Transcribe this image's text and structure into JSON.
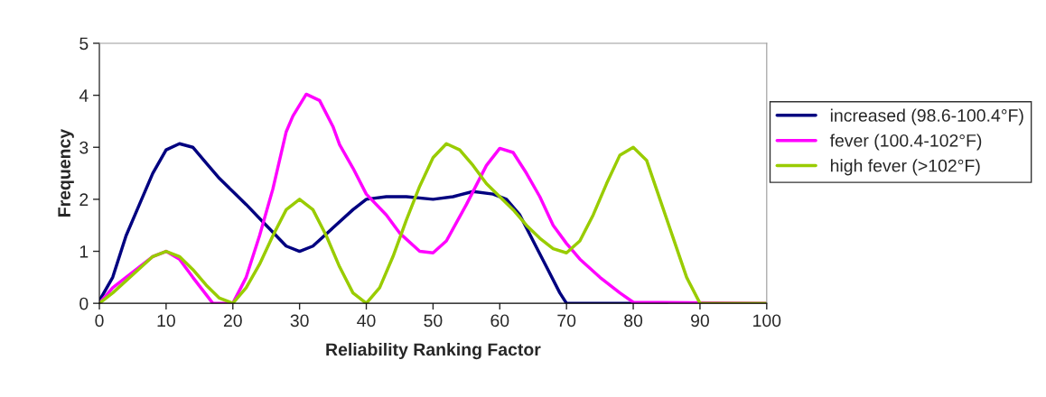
{
  "chart_data": {
    "type": "line",
    "xlabel": "Reliability Ranking Factor",
    "ylabel": "Frequency",
    "xlim": [
      0,
      100
    ],
    "xticks": [
      0,
      10,
      20,
      30,
      40,
      50,
      60,
      70,
      80,
      90,
      100
    ],
    "ylim": [
      0,
      5
    ],
    "yticks": [
      0,
      1,
      2,
      3,
      4,
      5
    ],
    "grid": false,
    "legend": "right",
    "marker": "none",
    "line_style": "solid",
    "series": [
      {
        "name": "increased (98.6-100.4°F)",
        "color": "#000080",
        "x": [
          0,
          2,
          4,
          6,
          8,
          10,
          12,
          14,
          16,
          18,
          20,
          22,
          25,
          28,
          30,
          32,
          35,
          38,
          40,
          43,
          46,
          50,
          53,
          56,
          59,
          61,
          63,
          65,
          67,
          69,
          70,
          75,
          80,
          85
        ],
        "values": [
          0.05,
          0.5,
          1.3,
          1.9,
          2.5,
          2.95,
          3.07,
          3.0,
          2.7,
          2.4,
          2.15,
          1.9,
          1.5,
          1.1,
          1.0,
          1.1,
          1.45,
          1.8,
          2.0,
          2.05,
          2.05,
          2.0,
          2.05,
          2.15,
          2.1,
          2.0,
          1.7,
          1.2,
          0.7,
          0.2,
          0,
          0,
          0,
          0
        ]
      },
      {
        "name": "fever (100.4-102°F)",
        "color": "#ff00ff",
        "x": [
          0,
          2,
          5,
          8,
          10,
          12,
          14,
          17,
          20,
          22,
          24,
          26,
          28,
          29,
          31,
          33,
          35,
          36,
          38,
          40,
          43,
          45,
          48,
          50,
          52,
          55,
          58,
          60,
          62,
          64,
          66,
          68,
          70,
          72,
          75,
          78,
          80,
          100
        ],
        "values": [
          0,
          0.3,
          0.6,
          0.9,
          1.0,
          0.85,
          0.5,
          0,
          0,
          0.5,
          1.3,
          2.2,
          3.3,
          3.6,
          4.02,
          3.9,
          3.4,
          3.05,
          2.6,
          2.1,
          1.7,
          1.35,
          1.0,
          0.97,
          1.2,
          1.9,
          2.65,
          2.98,
          2.9,
          2.5,
          2.05,
          1.5,
          1.15,
          0.85,
          0.5,
          0.2,
          0.02,
          0
        ]
      },
      {
        "name": "high fever (>102°F)",
        "color": "#99cc00",
        "x": [
          0,
          2,
          5,
          8,
          10,
          12,
          14,
          16,
          18,
          20,
          22,
          24,
          26,
          28,
          30,
          32,
          34,
          36,
          38,
          40,
          42,
          44,
          46,
          48,
          50,
          52,
          54,
          56,
          58,
          60,
          62,
          64,
          66,
          68,
          70,
          72,
          74,
          76,
          78,
          80,
          82,
          84,
          86,
          88,
          90,
          100
        ],
        "values": [
          0,
          0.2,
          0.55,
          0.9,
          1.0,
          0.9,
          0.65,
          0.35,
          0.1,
          0,
          0.3,
          0.75,
          1.3,
          1.8,
          2.0,
          1.8,
          1.3,
          0.7,
          0.2,
          0,
          0.3,
          0.9,
          1.6,
          2.25,
          2.8,
          3.07,
          2.95,
          2.65,
          2.3,
          2.05,
          1.8,
          1.5,
          1.25,
          1.05,
          0.97,
          1.2,
          1.7,
          2.3,
          2.85,
          3.0,
          2.75,
          2.0,
          1.25,
          0.5,
          0,
          0
        ]
      }
    ]
  }
}
